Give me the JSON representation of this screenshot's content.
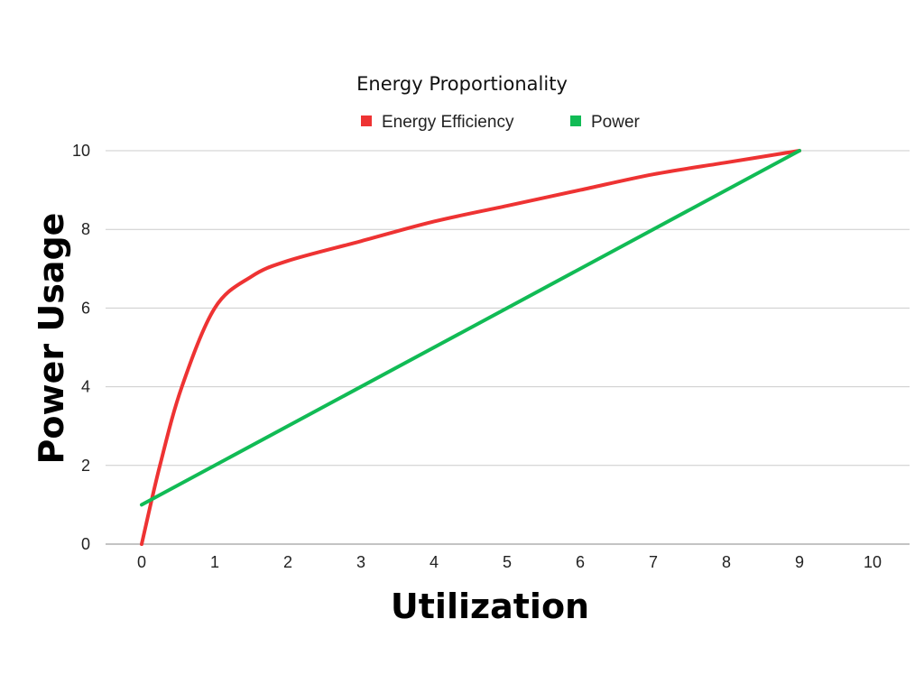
{
  "chart_data": {
    "type": "line",
    "title": "Energy Proportionality",
    "xlabel": "Utilization",
    "ylabel": "Power Usage",
    "xlim": [
      0,
      10
    ],
    "ylim": [
      0,
      10
    ],
    "x_ticks": [
      "0",
      "1",
      "2",
      "3",
      "4",
      "5",
      "6",
      "7",
      "8",
      "9",
      "10"
    ],
    "y_ticks": [
      "0",
      "2",
      "4",
      "6",
      "8",
      "10"
    ],
    "grid": "horizontal",
    "legend_position": "top",
    "series": [
      {
        "name": "Energy Efficiency",
        "color": "#ee3333",
        "smooth": true,
        "x": [
          0,
          0.25,
          0.55,
          1,
          1.5,
          2,
          3,
          4,
          5,
          6,
          7,
          8,
          9
        ],
        "y": [
          0,
          2,
          4,
          6,
          6.8,
          7.2,
          7.7,
          8.2,
          8.6,
          9,
          9.4,
          9.7,
          10
        ]
      },
      {
        "name": "Power",
        "color": "#11bb55",
        "smooth": false,
        "x": [
          0,
          9
        ],
        "y": [
          1,
          10
        ]
      }
    ]
  }
}
